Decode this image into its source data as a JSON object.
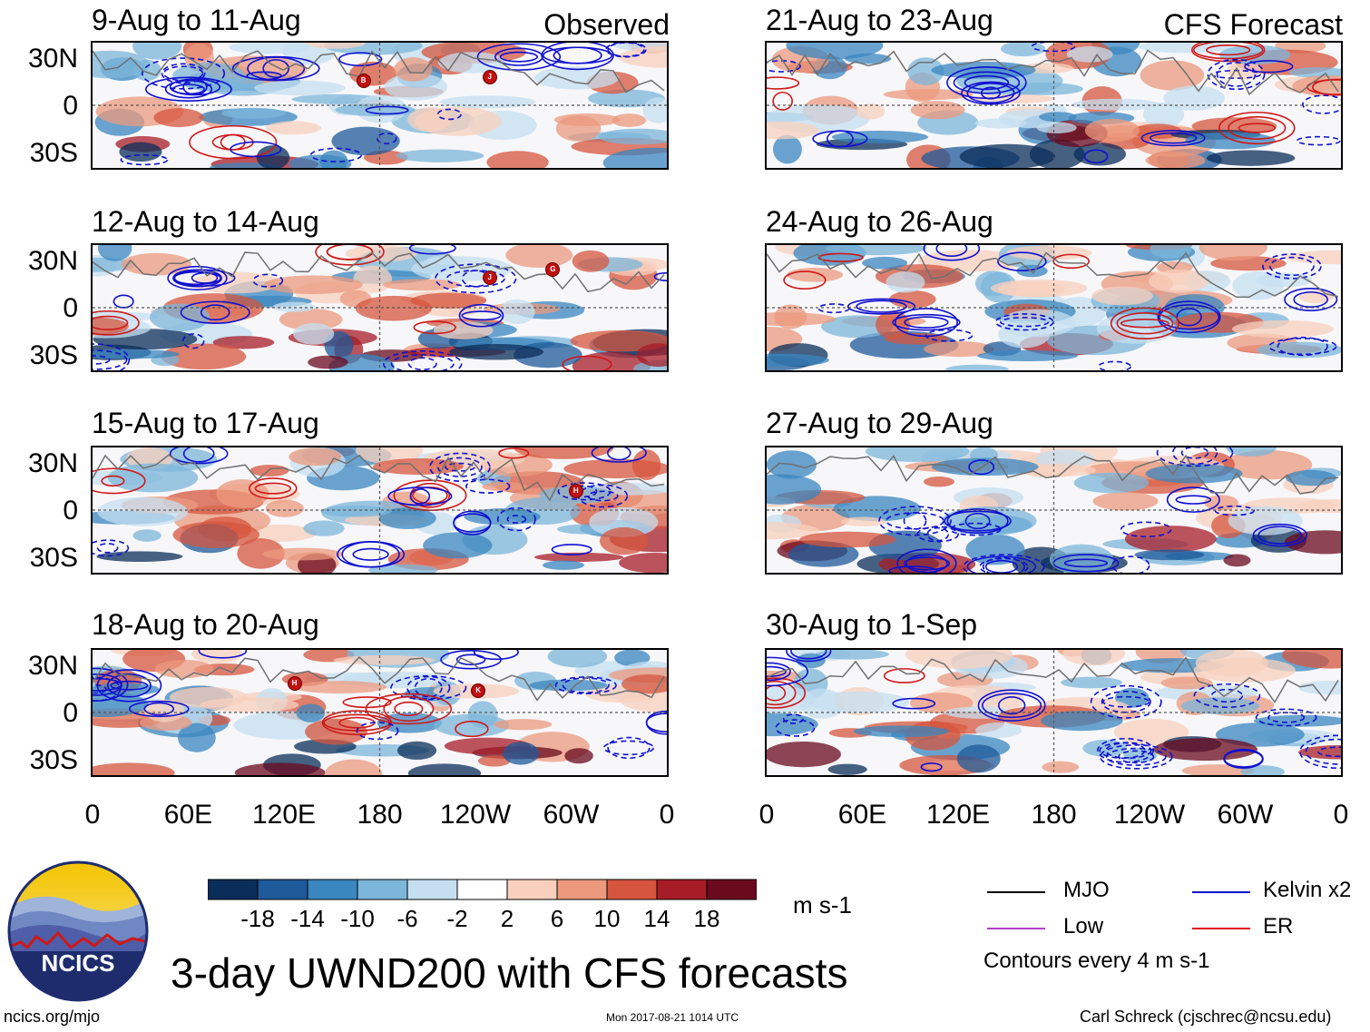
{
  "header": {
    "left_label": "Observed",
    "right_label": "CFS Forecast"
  },
  "observed_panels": [
    {
      "title": "9-Aug to 11-Aug",
      "storms": [
        "B",
        "J"
      ]
    },
    {
      "title": "12-Aug to 14-Aug",
      "storms": [
        "J",
        "G"
      ]
    },
    {
      "title": "15-Aug to 17-Aug",
      "storms": [
        "H"
      ]
    },
    {
      "title": "18-Aug to 20-Aug",
      "storms": [
        "H",
        "K"
      ]
    }
  ],
  "forecast_panels": [
    {
      "title": "21-Aug to 23-Aug"
    },
    {
      "title": "24-Aug to 26-Aug"
    },
    {
      "title": "27-Aug to 29-Aug"
    },
    {
      "title": "30-Aug to 1-Sep"
    }
  ],
  "axes": {
    "y_ticks": [
      "30N",
      "0",
      "30S"
    ],
    "x_ticks": [
      "0",
      "60E",
      "120E",
      "180",
      "120W",
      "60W",
      "0"
    ]
  },
  "colorbar": {
    "ticks": [
      "-18",
      "-14",
      "-10",
      "-6",
      "-2",
      "2",
      "6",
      "10",
      "14",
      "18"
    ],
    "colors": [
      "#0b2d5a",
      "#1f5a9a",
      "#3a86bf",
      "#7cb6da",
      "#c6dff0",
      "#ffffff",
      "#f8d0bd",
      "#eb9a7d",
      "#d6553e",
      "#a71c27",
      "#6a0a1d"
    ],
    "units": "m s-1"
  },
  "legend": {
    "items": [
      {
        "label": "MJO",
        "color": "#000000"
      },
      {
        "label": "Kelvin x2",
        "color": "#1010d0"
      },
      {
        "label": "Low",
        "color": "#b040c8"
      },
      {
        "label": "ER",
        "color": "#e01010"
      }
    ],
    "note": "Contours every 4 m s-1"
  },
  "logo": {
    "text": "NCICS"
  },
  "main_title": "3-day UWND200 with CFS forecasts",
  "footer": {
    "url": "ncics.org/mjo",
    "timestamp": "Mon 2017-08-21 1014 UTC",
    "credit": "Carl Schreck (cjschrec@ncsu.edu)"
  }
}
